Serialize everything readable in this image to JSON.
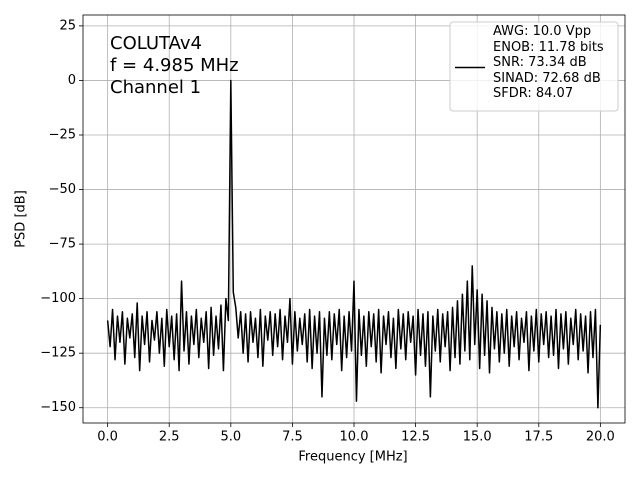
{
  "chart_data": {
    "type": "line",
    "xlabel": "Frequency [MHz]",
    "ylabel": "PSD [dB]",
    "annotations": [
      "COLUTAv4",
      "f = 4.985 MHz",
      "Channel 1"
    ],
    "legend": "upper right",
    "grid": true,
    "xlim": [
      -1,
      21
    ],
    "ylim": [
      -157,
      30
    ],
    "xticks": [
      {
        "value": 0,
        "label": "0.0"
      },
      2.5,
      {
        "value": 5,
        "label": "5.0"
      },
      7.5,
      {
        "value": 10,
        "label": "10.0"
      },
      12.5,
      {
        "value": 15,
        "label": "15.0"
      },
      17.5,
      {
        "value": 20,
        "label": "20.0"
      }
    ],
    "yticks": [
      25,
      0,
      {
        "value": -25,
        "label": "−25"
      },
      {
        "value": -50,
        "label": "−50"
      },
      {
        "value": -75,
        "label": "−75"
      },
      {
        "value": -100,
        "label": "−100"
      },
      {
        "value": -125,
        "label": "−125"
      },
      {
        "value": -150,
        "label": "−150"
      }
    ],
    "x": [
      0.0,
      0.1,
      0.2,
      0.3,
      0.4,
      0.5,
      0.6,
      0.7,
      0.8,
      0.9,
      1.0,
      1.1,
      1.2,
      1.3,
      1.4,
      1.5,
      1.6,
      1.7,
      1.8,
      1.9,
      2.0,
      2.1,
      2.2,
      2.3,
      2.4,
      2.5,
      2.6,
      2.7,
      2.8,
      2.9,
      3.0,
      3.1,
      3.2,
      3.3,
      3.4,
      3.5,
      3.6,
      3.7,
      3.8,
      3.9,
      4.0,
      4.1,
      4.2,
      4.3,
      4.4,
      4.5,
      4.6,
      4.7,
      4.8,
      4.9,
      5.0,
      5.1,
      5.2,
      5.3,
      5.4,
      5.5,
      5.6,
      5.7,
      5.8,
      5.9,
      6.0,
      6.1,
      6.2,
      6.3,
      6.4,
      6.5,
      6.6,
      6.7,
      6.8,
      6.9,
      7.0,
      7.1,
      7.2,
      7.3,
      7.4,
      7.5,
      7.6,
      7.7,
      7.8,
      7.9,
      8.0,
      8.1,
      8.2,
      8.3,
      8.4,
      8.5,
      8.6,
      8.7,
      8.8,
      8.9,
      9.0,
      9.1,
      9.2,
      9.3,
      9.4,
      9.5,
      9.6,
      9.7,
      9.8,
      9.9,
      10.0,
      10.1,
      10.2,
      10.3,
      10.4,
      10.5,
      10.6,
      10.7,
      10.8,
      10.9,
      11.0,
      11.1,
      11.2,
      11.3,
      11.4,
      11.5,
      11.6,
      11.7,
      11.8,
      11.9,
      12.0,
      12.1,
      12.2,
      12.3,
      12.4,
      12.5,
      12.6,
      12.7,
      12.8,
      12.9,
      13.0,
      13.1,
      13.2,
      13.3,
      13.4,
      13.5,
      13.6,
      13.7,
      13.8,
      13.9,
      14.0,
      14.1,
      14.2,
      14.3,
      14.4,
      14.5,
      14.6,
      14.7,
      14.8,
      14.9,
      15.0,
      15.1,
      15.2,
      15.3,
      15.4,
      15.5,
      15.6,
      15.7,
      15.8,
      15.9,
      16.0,
      16.1,
      16.2,
      16.3,
      16.4,
      16.5,
      16.6,
      16.7,
      16.8,
      16.9,
      17.0,
      17.1,
      17.2,
      17.3,
      17.4,
      17.5,
      17.6,
      17.7,
      17.8,
      17.9,
      18.0,
      18.1,
      18.2,
      18.3,
      18.4,
      18.5,
      18.6,
      18.7,
      18.8,
      18.9,
      19.0,
      19.1,
      19.2,
      19.3,
      19.4,
      19.5,
      19.6,
      19.7,
      19.8,
      19.9,
      20.0
    ],
    "series": [
      {
        "name": "AWG: 10.0 Vpp\nENOB: 11.78 bits\nSNR: 73.34 dB\nSINAD: 72.68 dB\nSFDR: 84.07",
        "color": "#000000",
        "values": [
          -110,
          -122,
          -105,
          -128,
          -108,
          -120,
          -106,
          -130,
          -109,
          -118,
          -107,
          -127,
          -102,
          -133,
          -108,
          -121,
          -106,
          -129,
          -110,
          -119,
          -106,
          -125,
          -109,
          -131,
          -105,
          -122,
          -108,
          -128,
          -107,
          -133,
          -92,
          -124,
          -106,
          -130,
          -108,
          -121,
          -105,
          -127,
          -109,
          -120,
          -106,
          -132,
          -104,
          -126,
          -108,
          -123,
          -103,
          -133,
          -100,
          -110,
          0,
          -97,
          -104,
          -118,
          -106,
          -125,
          -107,
          -129,
          -106,
          -120,
          -109,
          -127,
          -105,
          -131,
          -108,
          -119,
          -106,
          -126,
          -107,
          -122,
          -105,
          -128,
          -108,
          -120,
          -100,
          -130,
          -106,
          -124,
          -109,
          -121,
          -107,
          -129,
          -105,
          -132,
          -108,
          -125,
          -106,
          -145,
          -109,
          -126,
          -106,
          -128,
          -107,
          -121,
          -105,
          -133,
          -108,
          -127,
          -106,
          -124,
          -92,
          -147,
          -105,
          -126,
          -108,
          -131,
          -106,
          -122,
          -107,
          -129,
          -105,
          -134,
          -108,
          -121,
          -106,
          -127,
          -109,
          -132,
          -105,
          -123,
          -107,
          -128,
          -106,
          -120,
          -108,
          -135,
          -105,
          -126,
          -107,
          -131,
          -106,
          -145,
          -108,
          -124,
          -105,
          -129,
          -107,
          -122,
          -106,
          -133,
          -104,
          -127,
          -101,
          -130,
          -98,
          -124,
          -92,
          -128,
          -85,
          -121,
          -96,
          -132,
          -98,
          -126,
          -101,
          -134,
          -104,
          -123,
          -106,
          -129,
          -107,
          -125,
          -105,
          -131,
          -108,
          -122,
          -106,
          -128,
          -109,
          -120,
          -106,
          -133,
          -108,
          -124,
          -105,
          -129,
          -107,
          -121,
          -106,
          -127,
          -108,
          -126,
          -105,
          -132,
          -107,
          -123,
          -106,
          -130,
          -109,
          -121,
          -105,
          -128,
          -107,
          -124,
          -108,
          -134,
          -106,
          -127,
          -105,
          -150,
          -112
        ]
      }
    ]
  }
}
